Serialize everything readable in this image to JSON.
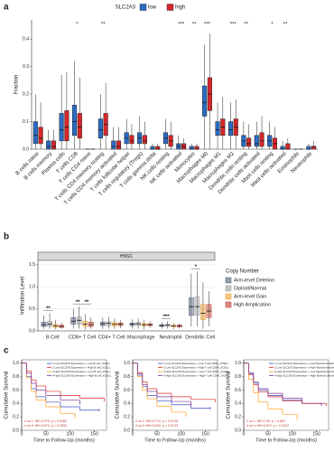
{
  "chart_data": [
    {
      "type": "box",
      "panel_label": "a",
      "ylabel": "Fraction",
      "legend_title": "SLC2A3",
      "categories": [
        "B cells naive",
        "B cells memory",
        "Plasma cells",
        "T cells CD8",
        "T cells CD4 naive",
        "T cells CD4 memory resting",
        "T cells CD4 memory activated",
        "T cells follicular helper",
        "T cells regulatory (Tregs)",
        "T cells gamma delta",
        "NK cells resting",
        "NK cells activated",
        "Monocytes",
        "Macrophages M0",
        "Macrophages M1",
        "Macrophages M2",
        "Dendritic cells resting",
        "Dendritic cells activated",
        "Mast cells resting",
        "Mast cells activated",
        "Eosinophils",
        "Neutrophils"
      ],
      "annotations": [
        null,
        null,
        null,
        "*",
        null,
        "**",
        null,
        null,
        null,
        null,
        null,
        "***",
        "**",
        "***",
        null,
        "***",
        "**",
        null,
        "*",
        "**",
        null,
        null
      ],
      "series": [
        {
          "name": "low",
          "color": "#2b6cc4",
          "values": [
            [
              0,
              0.02,
              0.05,
              0.1,
              0.2
            ],
            [
              0,
              0,
              0.01,
              0.03,
              0.07
            ],
            [
              0,
              0.03,
              0.07,
              0.13,
              0.27
            ],
            [
              0,
              0.05,
              0.1,
              0.16,
              0.32
            ],
            [
              0,
              0,
              0,
              0,
              0
            ],
            [
              0,
              0.04,
              0.07,
              0.11,
              0.2
            ],
            [
              0,
              0,
              0.01,
              0.03,
              0.08
            ],
            [
              0,
              0.02,
              0.04,
              0.06,
              0.11
            ],
            [
              0,
              0.02,
              0.04,
              0.06,
              0.12
            ],
            [
              0,
              0,
              0,
              0.01,
              0.02
            ],
            [
              0,
              0.02,
              0.04,
              0.06,
              0.11
            ],
            [
              0,
              0,
              0.01,
              0.02,
              0.05
            ],
            [
              0,
              0,
              0,
              0.01,
              0.02
            ],
            [
              0,
              0.12,
              0.17,
              0.23,
              0.38
            ],
            [
              0,
              0.05,
              0.07,
              0.1,
              0.17
            ],
            [
              0,
              0.05,
              0.07,
              0.1,
              0.17
            ],
            [
              0,
              0.01,
              0.03,
              0.05,
              0.1
            ],
            [
              0,
              0.01,
              0.02,
              0.05,
              0.1
            ],
            [
              0,
              0.01,
              0.03,
              0.05,
              0.1
            ],
            [
              0,
              0,
              0,
              0.01,
              0.03
            ],
            [
              0,
              0,
              0,
              0,
              0
            ],
            [
              0,
              0,
              0,
              0.01,
              0.02
            ]
          ]
        },
        {
          "name": "high",
          "color": "#d7262b",
          "values": [
            [
              0,
              0.02,
              0.04,
              0.08,
              0.17
            ],
            [
              0,
              0,
              0.01,
              0.03,
              0.07
            ],
            [
              0,
              0.03,
              0.08,
              0.14,
              0.28
            ],
            [
              0,
              0.04,
              0.08,
              0.13,
              0.26
            ],
            [
              0,
              0,
              0,
              0,
              0
            ],
            [
              0,
              0.05,
              0.09,
              0.13,
              0.24
            ],
            [
              0,
              0,
              0.01,
              0.03,
              0.08
            ],
            [
              0,
              0.02,
              0.03,
              0.05,
              0.09
            ],
            [
              0,
              0.02,
              0.03,
              0.05,
              0.1
            ],
            [
              0,
              0,
              0,
              0.01,
              0.02
            ],
            [
              0,
              0.01,
              0.03,
              0.05,
              0.1
            ],
            [
              0,
              0,
              0.01,
              0.02,
              0.04
            ],
            [
              0,
              0,
              0,
              0.01,
              0.02
            ],
            [
              0,
              0.14,
              0.2,
              0.26,
              0.42
            ],
            [
              0,
              0.05,
              0.08,
              0.11,
              0.19
            ],
            [
              0,
              0.05,
              0.08,
              0.11,
              0.18
            ],
            [
              0,
              0.01,
              0.02,
              0.04,
              0.09
            ],
            [
              0,
              0.01,
              0.03,
              0.06,
              0.12
            ],
            [
              0,
              0,
              0.02,
              0.04,
              0.08
            ],
            [
              0,
              0,
              0,
              0.02,
              0.04
            ],
            [
              0,
              0,
              0,
              0,
              0
            ],
            [
              0,
              0,
              0.01,
              0.01,
              0.03
            ]
          ]
        }
      ],
      "ylim": [
        0,
        0.47
      ],
      "yticks": [
        {
          "value": 0,
          "label": "0.0"
        },
        0.1,
        0.2,
        0.3,
        0.4
      ],
      "grid": false
    },
    {
      "type": "box",
      "panel_label": "b",
      "title": "HNSC",
      "ylabel": "Infiltration Level",
      "legend_title": "Copy Number",
      "categories": [
        "B Cell",
        "CD8+ T Cell",
        "CD4+ T Cell",
        "Macrophage",
        "Neutrophil",
        "Dendritic Cell"
      ],
      "annotations": [
        [
          "**"
        ],
        [
          "**",
          "**"
        ],
        [],
        [],
        [
          "***"
        ],
        [
          "*"
        ]
      ],
      "series": [
        {
          "name": "Arm-level Deletion",
          "color": "#4d5d7a",
          "values": [
            [
              0.05,
              0.1,
              0.14,
              0.2,
              0.35
            ],
            [
              0.05,
              0.15,
              0.22,
              0.3,
              0.5
            ],
            [
              0.05,
              0.12,
              0.16,
              0.2,
              0.3
            ],
            [
              0.05,
              0.12,
              0.15,
              0.18,
              0.26
            ],
            [
              0.05,
              0.1,
              0.12,
              0.14,
              0.2
            ],
            [
              0.1,
              0.35,
              0.55,
              0.75,
              1.3
            ]
          ]
        },
        {
          "name": "Diploid/Normal",
          "color": "#9e9e9e",
          "values": [
            [
              0.05,
              0.1,
              0.15,
              0.22,
              0.4
            ],
            [
              0.05,
              0.15,
              0.24,
              0.32,
              0.55
            ],
            [
              0.05,
              0.12,
              0.17,
              0.21,
              0.32
            ],
            [
              0.05,
              0.12,
              0.16,
              0.19,
              0.28
            ],
            [
              0.05,
              0.1,
              0.13,
              0.15,
              0.22
            ],
            [
              0.1,
              0.35,
              0.55,
              0.78,
              1.35
            ]
          ]
        },
        {
          "name": "Arm-level Gain",
          "color": "#f0a030",
          "values": [
            [
              0.04,
              0.08,
              0.11,
              0.15,
              0.25
            ],
            [
              0.03,
              0.1,
              0.15,
              0.22,
              0.38
            ],
            [
              0.05,
              0.11,
              0.15,
              0.19,
              0.28
            ],
            [
              0.04,
              0.11,
              0.14,
              0.17,
              0.25
            ],
            [
              0.04,
              0.09,
              0.11,
              0.13,
              0.18
            ],
            [
              0.05,
              0.25,
              0.4,
              0.6,
              1.1
            ]
          ]
        },
        {
          "name": "High Amplication",
          "color": "#c0392b",
          "values": [
            [
              0.05,
              0.08,
              0.1,
              0.13,
              0.18
            ],
            [
              0.05,
              0.1,
              0.14,
              0.2,
              0.3
            ],
            [
              0.06,
              0.12,
              0.15,
              0.18,
              0.25
            ],
            [
              0.07,
              0.12,
              0.14,
              0.16,
              0.22
            ],
            [
              0.06,
              0.09,
              0.11,
              0.13,
              0.17
            ],
            [
              0.1,
              0.3,
              0.45,
              0.6,
              0.9
            ]
          ]
        }
      ],
      "ylim": [
        0,
        1.6
      ],
      "yticks": [
        {
          "value": 0,
          "label": "0.0"
        },
        0.5,
        {
          "value": 1,
          "label": "1.0"
        },
        1.5
      ],
      "grid": true
    },
    {
      "type": "km",
      "panel_label": "c",
      "xlabel": "Time to Follow-Up (months)",
      "ylabel": "Cumulative Survival",
      "annotations": [
        "2 vs 1: HR=0.570, p = 0.0381",
        "4 vs 3: HR=0.573, p = 0.0393"
      ],
      "series": [
        {
          "name": "1 Low SLC2A3 Expression + Low B cell_XCELL",
          "color": "#3b4cc0",
          "x": [
            0,
            10,
            20,
            30,
            50,
            80,
            120,
            160
          ],
          "values": [
            1,
            0.8,
            0.62,
            0.5,
            0.42,
            0.35,
            0.3,
            0.3
          ]
        },
        {
          "name": "2 Low SLC2A3 Expression + High B cell_XCELL",
          "color": "#d62728",
          "x": [
            0,
            10,
            20,
            30,
            50,
            80,
            120,
            170
          ],
          "values": [
            1,
            0.88,
            0.75,
            0.66,
            0.58,
            0.52,
            0.48,
            0.45
          ]
        },
        {
          "name": "3 High SLC2A3 Expression + Low B cell_XCELL",
          "color": "#ff9f1c",
          "x": [
            0,
            10,
            20,
            30,
            50,
            80,
            110
          ],
          "values": [
            1,
            0.78,
            0.58,
            0.45,
            0.35,
            0.25,
            0.2
          ]
        },
        {
          "name": "4 High SLC2A3 Expression + High B cell_XCELL",
          "color": "#7b3294",
          "x": [
            0,
            10,
            20,
            30,
            50,
            80,
            120
          ],
          "values": [
            1,
            0.85,
            0.7,
            0.6,
            0.52,
            0.45,
            0.4
          ]
        }
      ],
      "xlim": [
        0,
        175
      ],
      "xticks": [
        0,
        50,
        100,
        150
      ],
      "ylim": [
        0,
        1.05
      ],
      "yticks": [
        {
          "value": 0,
          "label": "0.0"
        },
        0.2,
        0.4,
        0.6,
        0.8,
        {
          "value": 1,
          "label": "1.0"
        }
      ]
    },
    {
      "type": "km",
      "xlabel": "Time to Follow-Up (months)",
      "ylabel": "Cumulative Survival",
      "annotations": [
        "2 vs 1: HR=0.712, p = 0.0728",
        "4 vs 3: HR=0.629, p = 0.0729"
      ],
      "series": [
        {
          "name": "1 Low SLC2A3 Expression + Low T cell CD8+_XCELL",
          "color": "#3b4cc0",
          "x": [
            0,
            10,
            20,
            30,
            50,
            80,
            120,
            160
          ],
          "values": [
            1,
            0.82,
            0.65,
            0.52,
            0.44,
            0.38,
            0.33,
            0.33
          ]
        },
        {
          "name": "2 Low SLC2A3 Expression + High T cell CD8+_XCELL",
          "color": "#d62728",
          "x": [
            0,
            10,
            20,
            30,
            50,
            80,
            120,
            170
          ],
          "values": [
            1,
            0.86,
            0.72,
            0.62,
            0.55,
            0.5,
            0.46,
            0.44
          ]
        },
        {
          "name": "3 High SLC2A3 Expression + Low T cell CD8+_XCELL",
          "color": "#ff9f1c",
          "x": [
            0,
            10,
            20,
            30,
            50,
            80,
            110
          ],
          "values": [
            1,
            0.8,
            0.6,
            0.47,
            0.36,
            0.27,
            0.22
          ]
        },
        {
          "name": "4 High SLC2A3 Expression + High T cell CD8+_XCELL",
          "color": "#7b3294",
          "x": [
            0,
            10,
            20,
            30,
            50,
            80,
            120
          ],
          "values": [
            1,
            0.84,
            0.68,
            0.58,
            0.5,
            0.43,
            0.38
          ]
        }
      ],
      "xlim": [
        0,
        175
      ],
      "xticks": [
        0,
        50,
        100,
        150
      ],
      "ylim": [
        0,
        1.05
      ],
      "yticks": [
        {
          "value": 0,
          "label": "0.0"
        },
        0.2,
        0.4,
        0.6,
        0.8,
        {
          "value": 1,
          "label": "1.0"
        }
      ]
    },
    {
      "type": "km",
      "xlabel": "Time to Follow-Up (months)",
      "ylabel": "Cumulative Survival",
      "annotations": [
        "2 vs 1: HR=1.09, p = 0.667",
        "4 vs 3: HR=0.672, p = 0.0212"
      ],
      "series": [
        {
          "name": "1 Low SLC2A3 Expression + Low Myeloid dendritic cell_XCELL",
          "color": "#3b4cc0",
          "x": [
            0,
            10,
            20,
            30,
            50,
            80,
            120,
            160
          ],
          "values": [
            1,
            0.84,
            0.7,
            0.6,
            0.52,
            0.45,
            0.4,
            0.38
          ]
        },
        {
          "name": "2 Low SLC2A3 Expression + High Myeloid dendritic cell_XCELL",
          "color": "#d62728",
          "x": [
            0,
            10,
            20,
            30,
            50,
            80,
            120,
            170
          ],
          "values": [
            1,
            0.83,
            0.68,
            0.57,
            0.5,
            0.44,
            0.4,
            0.38
          ]
        },
        {
          "name": "3 High SLC2A3 Expression + Low Myeloid dendritic cell_XCELL",
          "color": "#ff9f1c",
          "x": [
            0,
            10,
            20,
            30,
            50,
            80,
            110
          ],
          "values": [
            1,
            0.76,
            0.56,
            0.42,
            0.32,
            0.24,
            0.18
          ]
        },
        {
          "name": "4 High SLC2A3 Expression + High Myeloid dendritic cell_XCELL",
          "color": "#7b3294",
          "x": [
            0,
            10,
            20,
            30,
            50,
            80,
            120
          ],
          "values": [
            1,
            0.86,
            0.72,
            0.62,
            0.55,
            0.48,
            0.42
          ]
        }
      ],
      "xlim": [
        0,
        175
      ],
      "xticks": [
        0,
        50,
        100,
        150
      ],
      "ylim": [
        0,
        1.05
      ],
      "yticks": [
        {
          "value": 0,
          "label": "0.0"
        },
        0.2,
        0.4,
        0.6,
        0.8,
        {
          "value": 1,
          "label": "1.0"
        }
      ]
    }
  ]
}
